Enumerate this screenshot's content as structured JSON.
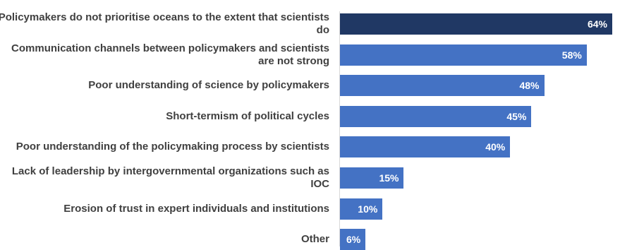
{
  "chart_data": {
    "type": "bar",
    "orientation": "horizontal",
    "categories": [
      "Policymakers do not prioritise oceans to the extent that scientists do",
      "Communication channels between policymakers and scientists are not strong",
      "Poor understanding of science by policymakers",
      "Short-termism of political cycles",
      "Poor understanding of the policymaking process by scientists",
      "Lack of leadership by intergovernmental organizations such as IOC",
      "Erosion of trust in expert individuals and institutions",
      "Other"
    ],
    "values": [
      64,
      58,
      48,
      45,
      40,
      15,
      10,
      6
    ],
    "value_labels": [
      "64%",
      "58%",
      "48%",
      "45%",
      "40%",
      "15%",
      "10%",
      "6%"
    ],
    "colors": [
      "#203864",
      "#4472c4",
      "#4472c4",
      "#4472c4",
      "#4472c4",
      "#4472c4",
      "#4472c4",
      "#4472c4"
    ],
    "xlim": [
      0,
      64
    ],
    "grid": false,
    "legend": "none"
  }
}
